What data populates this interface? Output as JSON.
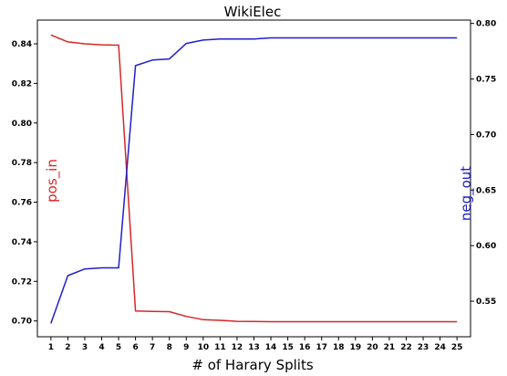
{
  "chart_data": {
    "type": "line",
    "title": "WikiElec",
    "xlabel": "# of Harary Splits",
    "x": [
      1,
      2,
      3,
      4,
      5,
      6,
      7,
      8,
      9,
      10,
      11,
      12,
      13,
      14,
      15,
      16,
      17,
      18,
      19,
      20,
      21,
      22,
      23,
      24,
      25
    ],
    "series": [
      {
        "name": "pos_in",
        "axis": "left",
        "color": "#d62728",
        "values": [
          0.8445,
          0.841,
          0.84,
          0.8395,
          0.8393,
          0.705,
          0.7048,
          0.7047,
          0.7023,
          0.7006,
          0.7003,
          0.6998,
          0.6997,
          0.6996,
          0.6996,
          0.6996,
          0.6996,
          0.6996,
          0.6996,
          0.6996,
          0.6996,
          0.6996,
          0.6996,
          0.6996,
          0.6996
        ]
      },
      {
        "name": "neg_out",
        "axis": "right",
        "color": "#1f1fcc",
        "values": [
          0.53,
          0.573,
          0.579,
          0.58,
          0.58,
          0.762,
          0.767,
          0.768,
          0.782,
          0.785,
          0.786,
          0.786,
          0.786,
          0.787,
          0.787,
          0.787,
          0.787,
          0.787,
          0.787,
          0.787,
          0.787,
          0.787,
          0.787,
          0.787,
          0.787
        ]
      }
    ],
    "ylabel_left": "pos_in",
    "ylabel_right": "neg_out",
    "xlim": [
      0.2,
      25.8
    ],
    "ylim_left": [
      0.692,
      0.852
    ],
    "ylim_right": [
      0.518,
      0.803
    ],
    "yticks_left": [
      "0.70",
      "0.72",
      "0.74",
      "0.76",
      "0.78",
      "0.80",
      "0.82",
      "0.84"
    ],
    "yticks_right": [
      "0.55",
      "0.60",
      "0.65",
      "0.70",
      "0.75",
      "0.80"
    ],
    "grid": false
  }
}
